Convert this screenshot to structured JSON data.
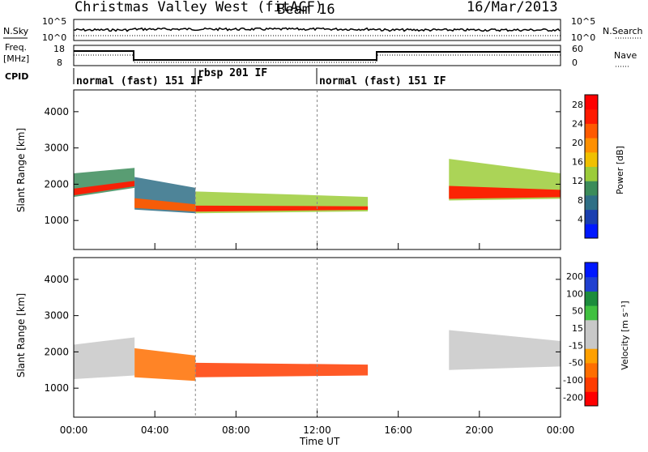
{
  "header": {
    "station_title": "Christmas Valley West (fitACF)",
    "beam": "Beam 16",
    "date": "16/Mar/2013"
  },
  "aux": {
    "nsky_label": "N.Sky",
    "nsearch_label": "N.Search",
    "noise_ticks": [
      "10^5",
      "10^0"
    ],
    "freq_label_1": "Freq.",
    "freq_label_2": "[MHz]",
    "freq_ticks": [
      "18",
      "8"
    ],
    "nave_label": "Nave",
    "nave_ticks": [
      "60",
      "0"
    ],
    "cpid_label": "CPID"
  },
  "cpid_segments": [
    {
      "label": "normal (fast) 151 IF",
      "start_hour": 0,
      "end_hour": 6
    },
    {
      "label": "rbsp 201 IF",
      "start_hour": 6,
      "end_hour": 12
    },
    {
      "label": "normal (fast) 151 IF",
      "start_hour": 12,
      "end_hour": 24
    }
  ],
  "chart_data": [
    {
      "type": "heatmap",
      "panel": "power",
      "ylabel": "Slant Range [km]",
      "yticks": [
        1000,
        2000,
        3000,
        4000
      ],
      "ylim": [
        200,
        4600
      ],
      "xlim_hours": [
        0,
        24
      ],
      "colorbar": {
        "label": "Power [dB]",
        "ticks": [
          4,
          8,
          12,
          16,
          20,
          24,
          28
        ],
        "range": [
          0,
          30
        ],
        "colors": [
          "#0018ff",
          "#1a3fb0",
          "#2f6f86",
          "#3c8c5a",
          "#9ccc3a",
          "#f0c000",
          "#ff9000",
          "#ff5a00",
          "#ff1a00",
          "#ff0000"
        ]
      },
      "echo_bands": [
        {
          "start_hour": 0.0,
          "end_hour": 3.0,
          "lower_km": [
            1650,
            1900
          ],
          "upper_km": [
            2300,
            2450
          ],
          "peak_db": 24
        },
        {
          "start_hour": 3.0,
          "end_hour": 6.0,
          "lower_km": [
            1300,
            1200
          ],
          "upper_km": [
            2200,
            1900
          ],
          "peak_db": 22
        },
        {
          "start_hour": 6.0,
          "end_hour": 14.5,
          "lower_km": [
            1200,
            1250
          ],
          "upper_km": [
            1800,
            1650
          ],
          "peak_db": 26
        },
        {
          "start_hour": 18.5,
          "end_hour": 24.0,
          "lower_km": [
            1550,
            1600
          ],
          "upper_km": [
            2700,
            2300
          ],
          "peak_db": 26
        }
      ]
    },
    {
      "type": "heatmap",
      "panel": "velocity",
      "ylabel": "Slant Range [km]",
      "yticks": [
        1000,
        2000,
        3000,
        4000
      ],
      "ylim": [
        200,
        4600
      ],
      "xlim_hours": [
        0,
        24
      ],
      "xlabel": "Time UT",
      "xticks": [
        "00:00",
        "04:00",
        "08:00",
        "12:00",
        "16:00",
        "20:00",
        "00:00"
      ],
      "colorbar": {
        "label": "Velocity [m s⁻¹]",
        "ticks": [
          200,
          100,
          50,
          15,
          -15,
          -50,
          -100,
          -200
        ],
        "range": [
          -250,
          250
        ],
        "colors": [
          "#ff0000",
          "#ff3c00",
          "#ff6e00",
          "#ffa000",
          "#c8c8c8",
          "#c8c8c8",
          "#40c040",
          "#1c8c3c",
          "#2040d0",
          "#0018ff"
        ]
      },
      "echo_bands": [
        {
          "start_hour": 0.0,
          "end_hour": 3.0,
          "lower_km": [
            1250,
            1350
          ],
          "upper_km": [
            2200,
            2400
          ],
          "velocity_ms": 0
        },
        {
          "start_hour": 3.0,
          "end_hour": 6.0,
          "lower_km": [
            1300,
            1200
          ],
          "upper_km": [
            2100,
            1900
          ],
          "velocity_ms": -150
        },
        {
          "start_hour": 6.0,
          "end_hour": 14.5,
          "lower_km": [
            1300,
            1350
          ],
          "upper_km": [
            1700,
            1650
          ],
          "velocity_ms": -200
        },
        {
          "start_hour": 18.5,
          "end_hour": 24.0,
          "lower_km": [
            1500,
            1600
          ],
          "upper_km": [
            2600,
            2300
          ],
          "velocity_ms": 0
        }
      ]
    }
  ]
}
